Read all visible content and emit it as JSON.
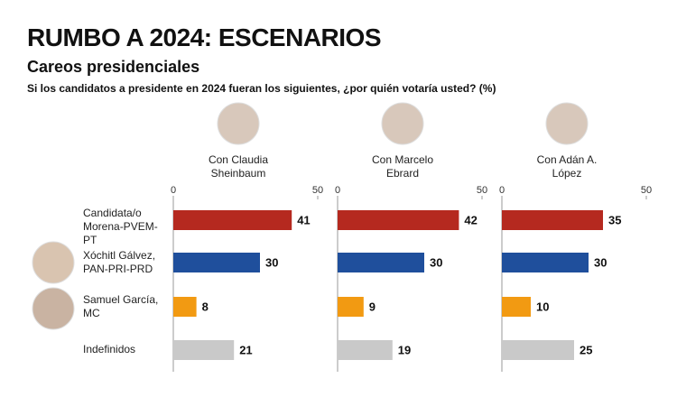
{
  "title": "RUMBO A 2024: ESCENARIOS",
  "subtitle": "Careos presidenciales",
  "question": "Si los candidatos a presidente en 2024 fueran los siguientes, ¿por quién votaría usted? (%)",
  "chart_data": [
    {
      "type": "bar",
      "title": "Con Claudia Sheinbaum",
      "categories": [
        "Candidata/o Morena-PVEM-PT",
        "Xóchitl Gálvez, PAN-PRI-PRD",
        "Samuel García, MC",
        "Indefinidos"
      ],
      "values": [
        41,
        30,
        8,
        21
      ],
      "colors": [
        "#b5291f",
        "#1f4f9c",
        "#f29a12",
        "#c9c9c9"
      ],
      "xlim": [
        0,
        50
      ],
      "xticks": [
        0,
        50
      ]
    },
    {
      "type": "bar",
      "title": "Con Marcelo Ebrard",
      "categories": [
        "Candidata/o Morena-PVEM-PT",
        "Xóchitl Gálvez, PAN-PRI-PRD",
        "Samuel García, MC",
        "Indefinidos"
      ],
      "values": [
        42,
        30,
        9,
        19
      ],
      "colors": [
        "#b5291f",
        "#1f4f9c",
        "#f29a12",
        "#c9c9c9"
      ],
      "xlim": [
        0,
        50
      ],
      "xticks": [
        0,
        50
      ]
    },
    {
      "type": "bar",
      "title": "Con Adán A. López",
      "categories": [
        "Candidata/o Morena-PVEM-PT",
        "Xóchitl Gálvez, PAN-PRI-PRD",
        "Samuel García, MC",
        "Indefinidos"
      ],
      "values": [
        35,
        30,
        10,
        25
      ],
      "colors": [
        "#b5291f",
        "#1f4f9c",
        "#f29a12",
        "#c9c9c9"
      ],
      "xlim": [
        0,
        50
      ],
      "xticks": [
        0,
        50
      ]
    }
  ]
}
